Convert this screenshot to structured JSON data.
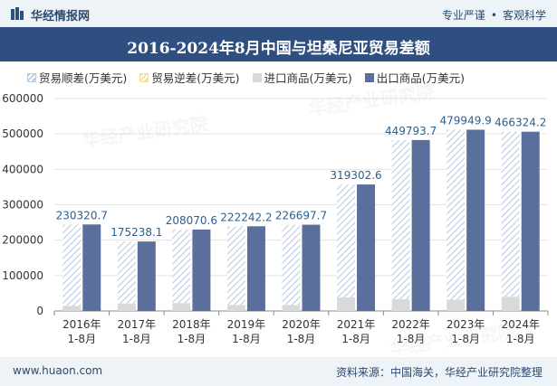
{
  "header": {
    "site_name": "华经情报网",
    "tagline_left": "专业严谨",
    "tagline_right": "客观科学"
  },
  "footer": {
    "url": "www.huaon.com",
    "source": "资料来源：中国海关，华经产业研究院整理"
  },
  "watermark": {
    "text": "华经产业研究院"
  },
  "colors": {
    "title_bg": "#2e4f80",
    "export": "#5b6f9c",
    "import": "#d9d9d9",
    "surplus": "#b8cce4",
    "label": "#2e5f8a"
  },
  "chart_data": {
    "type": "bar",
    "title": "2016-2024年8月中国与坦桑尼亚贸易差额",
    "categories": [
      "2016年\n1-8月",
      "2017年\n1-8月",
      "2018年\n1-8月",
      "2019年\n1-8月",
      "2020年\n1-8月",
      "2021年\n1-8月",
      "2022年\n1-8月",
      "2023年\n1-8月",
      "2024年\n1-8月"
    ],
    "legend": [
      "贸易顺差(万美元)",
      "贸易逆差(万美元)",
      "进口商品(万美元)",
      "出口商品(万美元)"
    ],
    "series": [
      {
        "name": "贸易顺差(万美元)",
        "values": [
          230320.7,
          175238.1,
          208070.6,
          222242.2,
          226697.7,
          319302.6,
          449793.7,
          479949.9,
          466324.2
        ]
      },
      {
        "name": "贸易逆差(万美元)",
        "values": [
          0,
          0,
          0,
          0,
          0,
          0,
          0,
          0,
          0
        ]
      },
      {
        "name": "进口商品(万美元)",
        "values": [
          14000,
          21000,
          22000,
          17000,
          17000,
          38000,
          33000,
          32000,
          40000
        ]
      },
      {
        "name": "出口商品(万美元)",
        "values": [
          244320.7,
          196238.1,
          230070.6,
          239242.2,
          243697.7,
          357302.6,
          482793.7,
          511949.9,
          506324.2
        ]
      }
    ],
    "data_labels": [
      "230320.7",
      "175238.1",
      "208070.6",
      "222242.2",
      "226697.7",
      "319302.6",
      "449793.7",
      "479949.9",
      "466324.2"
    ],
    "ylim": [
      0,
      600000
    ],
    "yticks": [
      "0",
      "100000",
      "200000",
      "300000",
      "400000",
      "500000",
      "600000"
    ],
    "xlabel": "",
    "ylabel": ""
  }
}
